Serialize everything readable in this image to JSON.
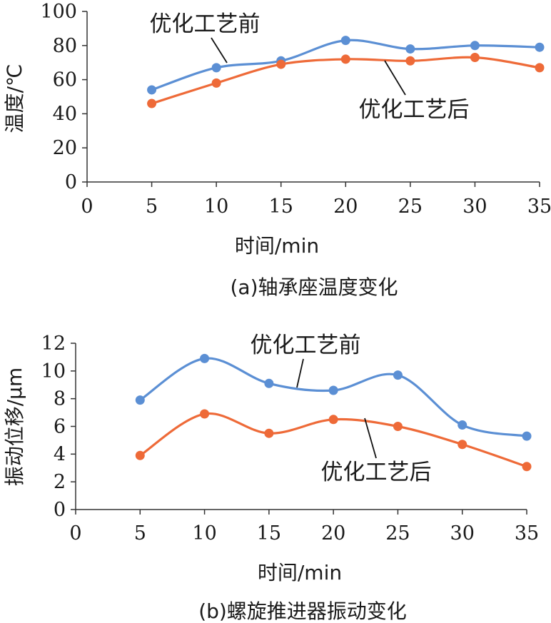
{
  "colors": {
    "before": "#5b8fd4",
    "after": "#ee6a38"
  },
  "chart_data": [
    {
      "type": "line",
      "caption": "(a)轴承座温度变化",
      "xlabel": "时间/min",
      "ylabel": "温度/℃",
      "xlim": [
        0,
        35
      ],
      "ylim": [
        0,
        100
      ],
      "x_ticks": [
        0,
        5,
        10,
        15,
        20,
        25,
        30,
        35
      ],
      "y_ticks": [
        0,
        20,
        40,
        60,
        80,
        100
      ],
      "grid": false,
      "smooth": true,
      "x": [
        5,
        10,
        15,
        20,
        25,
        30,
        35
      ],
      "series": [
        {
          "name": "优化工艺前",
          "color_key": "before",
          "values": [
            54,
            67,
            71,
            83,
            78,
            80,
            79
          ]
        },
        {
          "name": "优化工艺后",
          "color_key": "after",
          "values": [
            46,
            58,
            69,
            72,
            71,
            73,
            67
          ]
        }
      ]
    },
    {
      "type": "line",
      "caption": "(b)螺旋推进器振动变化",
      "xlabel": "时间/min",
      "ylabel": "振动位移/μm",
      "xlim": [
        0,
        35
      ],
      "ylim": [
        0,
        12
      ],
      "x_ticks": [
        0,
        5,
        10,
        15,
        20,
        25,
        30,
        35
      ],
      "y_ticks": [
        0,
        2,
        4,
        6,
        8,
        10,
        12
      ],
      "grid": false,
      "smooth": true,
      "x": [
        5,
        10,
        15,
        20,
        25,
        30,
        35
      ],
      "series": [
        {
          "name": "优化工艺前",
          "color_key": "before",
          "values": [
            7.9,
            10.9,
            9.1,
            8.6,
            9.7,
            6.1,
            5.3
          ]
        },
        {
          "name": "优化工艺后",
          "color_key": "after",
          "values": [
            3.9,
            6.9,
            5.5,
            6.5,
            6.0,
            4.7,
            3.1
          ]
        }
      ]
    }
  ]
}
